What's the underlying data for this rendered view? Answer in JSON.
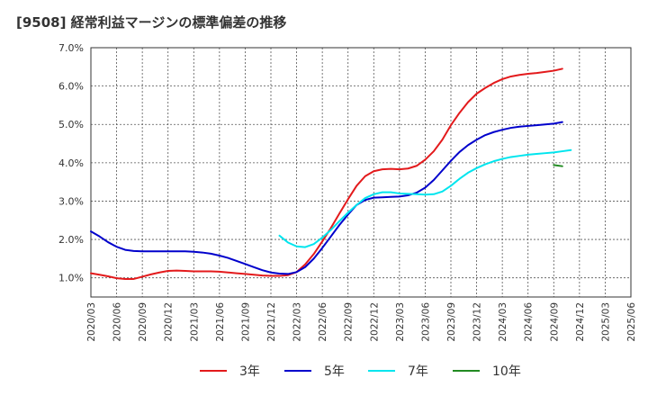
{
  "chart_data": {
    "type": "line",
    "title": "[9508]  経常利益マージンの標準偏差の推移",
    "xlabel": "",
    "ylabel": "",
    "ylim": [
      0.5,
      7.0
    ],
    "yticks": [
      1.0,
      2.0,
      3.0,
      4.0,
      5.0,
      6.0,
      7.0
    ],
    "ytick_labels": [
      "1.0%",
      "2.0%",
      "3.0%",
      "4.0%",
      "5.0%",
      "6.0%",
      "7.0%"
    ],
    "x_tick_labels": [
      "2020/03",
      "2020/06",
      "2020/09",
      "2020/12",
      "2021/03",
      "2021/06",
      "2021/09",
      "2021/12",
      "2022/03",
      "2022/06",
      "2022/09",
      "2022/12",
      "2023/03",
      "2023/06",
      "2023/09",
      "2023/12",
      "2024/03",
      "2024/06",
      "2024/09",
      "2024/12",
      "2025/03",
      "2025/06"
    ],
    "grid": true,
    "legend_position": "bottom",
    "series": [
      {
        "name": "3年",
        "color": "#e31a1c",
        "start_index": 0,
        "values": [
          1.12,
          1.08,
          1.04,
          0.99,
          0.97,
          0.97,
          1.03,
          1.09,
          1.14,
          1.18,
          1.19,
          1.18,
          1.17,
          1.17,
          1.17,
          1.16,
          1.14,
          1.12,
          1.1,
          1.08,
          1.06,
          1.05,
          1.05,
          1.07,
          1.15,
          1.35,
          1.62,
          1.95,
          2.3,
          2.68,
          3.05,
          3.4,
          3.65,
          3.78,
          3.83,
          3.84,
          3.83,
          3.85,
          3.92,
          4.08,
          4.3,
          4.6,
          4.98,
          5.3,
          5.58,
          5.8,
          5.95,
          6.08,
          6.18,
          6.25,
          6.29,
          6.32,
          6.34,
          6.37,
          6.4,
          6.45
        ]
      },
      {
        "name": "5年",
        "color": "#0000cc",
        "start_index": 0,
        "values": [
          2.21,
          2.08,
          1.93,
          1.81,
          1.73,
          1.7,
          1.69,
          1.69,
          1.69,
          1.69,
          1.69,
          1.69,
          1.68,
          1.66,
          1.63,
          1.58,
          1.52,
          1.44,
          1.36,
          1.28,
          1.2,
          1.14,
          1.11,
          1.1,
          1.15,
          1.28,
          1.5,
          1.78,
          2.08,
          2.38,
          2.65,
          2.9,
          3.03,
          3.09,
          3.1,
          3.11,
          3.12,
          3.15,
          3.22,
          3.35,
          3.55,
          3.8,
          4.05,
          4.28,
          4.46,
          4.6,
          4.72,
          4.8,
          4.86,
          4.91,
          4.94,
          4.96,
          4.98,
          5.0,
          5.02,
          5.06
        ]
      },
      {
        "name": "7年",
        "color": "#00e5ee",
        "start_index": 22,
        "values": [
          2.1,
          1.92,
          1.82,
          1.8,
          1.88,
          2.05,
          2.25,
          2.48,
          2.7,
          2.9,
          3.08,
          3.18,
          3.23,
          3.23,
          3.2,
          3.19,
          3.18,
          3.17,
          3.18,
          3.25,
          3.4,
          3.58,
          3.74,
          3.86,
          3.96,
          4.04,
          4.1,
          4.15,
          4.18,
          4.21,
          4.23,
          4.25,
          4.27,
          4.3,
          4.33
        ]
      },
      {
        "name": "10年",
        "color": "#228b22",
        "start_index": 54,
        "values": [
          3.94,
          3.91
        ]
      }
    ]
  }
}
